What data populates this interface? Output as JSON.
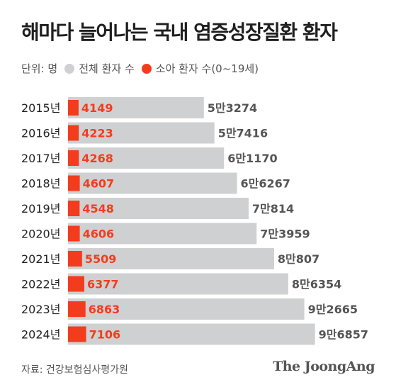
{
  "title": "해마다 늘어나는 국내 염증성장질환 환자",
  "legend": {
    "unit": "단위: 명",
    "total_label": "전체 환자 수",
    "child_label": "소아 환자 수(0~19세)"
  },
  "colors": {
    "total": "#cfd0d1",
    "child": "#f33c1d",
    "child_text": "#f33c1d",
    "value_text": "#555555"
  },
  "chart_data": {
    "type": "bar",
    "orientation": "horizontal",
    "categories": [
      "2015년",
      "2016년",
      "2017년",
      "2018년",
      "2019년",
      "2020년",
      "2021년",
      "2022년",
      "2023년",
      "2024년"
    ],
    "series": [
      {
        "name": "전체 환자 수",
        "values": [
          53274,
          57416,
          61170,
          66267,
          70814,
          73959,
          80807,
          86354,
          92665,
          96857
        ],
        "labels": [
          "5만3274",
          "5만7416",
          "6만1170",
          "6만6267",
          "7만814",
          "7만3959",
          "8만807",
          "8만6354",
          "9만2665",
          "9만6857"
        ]
      },
      {
        "name": "소아 환자 수(0~19세)",
        "values": [
          4149,
          4223,
          4268,
          4607,
          4548,
          4606,
          5509,
          6377,
          6863,
          7106
        ],
        "labels": [
          "4149",
          "4223",
          "4268",
          "4607",
          "4548",
          "4606",
          "5509",
          "6377",
          "6863",
          "7106"
        ]
      }
    ]
  },
  "source": "자료: 건강보험심사평가원",
  "brand": "The JoongAng"
}
